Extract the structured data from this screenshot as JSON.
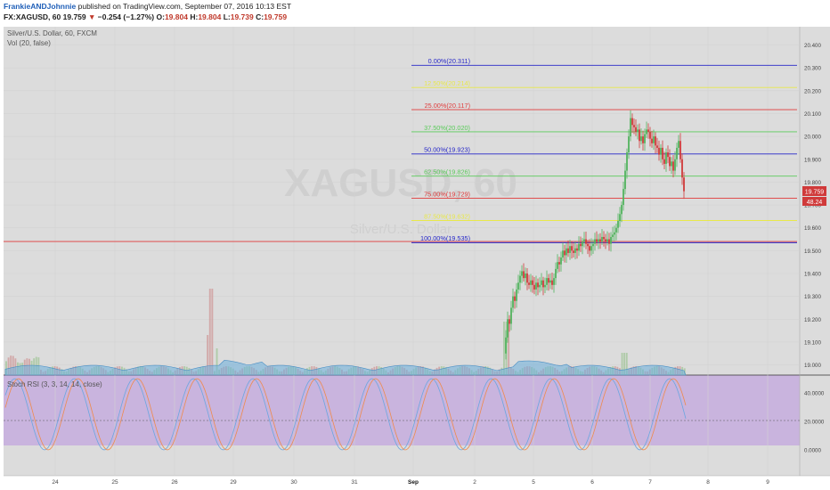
{
  "header": {
    "author": "FrankieANDJohnnie",
    "published_text": "published on TradingView.com, September 07, 2016 10:13 EST",
    "symbol": "FX:XAGUSD, 60",
    "last": "19.759",
    "change_arrow": "▼",
    "change": "−0.254 (−1.27%)",
    "o_label": "O:",
    "o": "19.804",
    "h_label": "H:",
    "h": "19.804",
    "l_label": "L:",
    "l": "19.739",
    "c_label": "C:",
    "c": "19.759"
  },
  "colors": {
    "background": "#dcdcdc",
    "stoch_panel": "#c9b4de",
    "up": "#52b35e",
    "down": "#d03a3a",
    "fib_blue": "#2727c8",
    "fib_yellow": "#e8e84a",
    "fib_red": "#e03a3a",
    "fib_green": "#5acb5a",
    "k_line": "#6aa6e0",
    "d_line": "#ef8a4c",
    "volume_ma": "#6aaedc"
  },
  "chart_data": [
    {
      "type": "candlestick",
      "title": "Silver/U.S. Dollar, 60, FXCM",
      "indicator_label": "Vol (20, false)",
      "watermark": "XAGUSD, 60",
      "watermark_sub": "Silver/U.S. Dollar",
      "x_ticks": [
        "24",
        "25",
        "26",
        "29",
        "30",
        "31",
        "Sep",
        "2",
        "5",
        "6",
        "7",
        "8",
        "9"
      ],
      "y_ticks": [
        "20.400",
        "20.300",
        "20.200",
        "20.100",
        "20.000",
        "19.900",
        "19.800",
        "19.700",
        "19.600",
        "19.500",
        "19.400",
        "19.300",
        "19.200",
        "19.100",
        "19.000"
      ],
      "ylim": [
        18.96,
        20.45
      ],
      "last_price_label": "19.759",
      "volume_label": "48.24",
      "horizontal_line": 19.54,
      "fib_levels": [
        {
          "label": "0.00%(20.311)",
          "price": 20.311,
          "color": "blue"
        },
        {
          "label": "12.50%(20.214)",
          "price": 20.214,
          "color": "yellow"
        },
        {
          "label": "25.00%(20.117)",
          "price": 20.117,
          "color": "red"
        },
        {
          "label": "37.50%(20.020)",
          "price": 20.02,
          "color": "green"
        },
        {
          "label": "50.00%(19.923)",
          "price": 19.923,
          "color": "blue"
        },
        {
          "label": "62.50%(19.826)",
          "price": 19.826,
          "color": "green"
        },
        {
          "label": "75.00%(19.729)",
          "price": 19.729,
          "color": "red"
        },
        {
          "label": "87.50%(19.632)",
          "price": 19.632,
          "color": "yellow"
        },
        {
          "label": "100.00%(19.535)",
          "price": 19.535,
          "color": "blue"
        }
      ]
    },
    {
      "type": "line",
      "title": "Stoch RSI (3, 3, 14, 14, close)",
      "y_ticks": [
        "40.0000",
        "20.0000",
        "0.0000"
      ],
      "band_lines": [
        80,
        20
      ],
      "ylim": [
        -10,
        100
      ]
    }
  ]
}
